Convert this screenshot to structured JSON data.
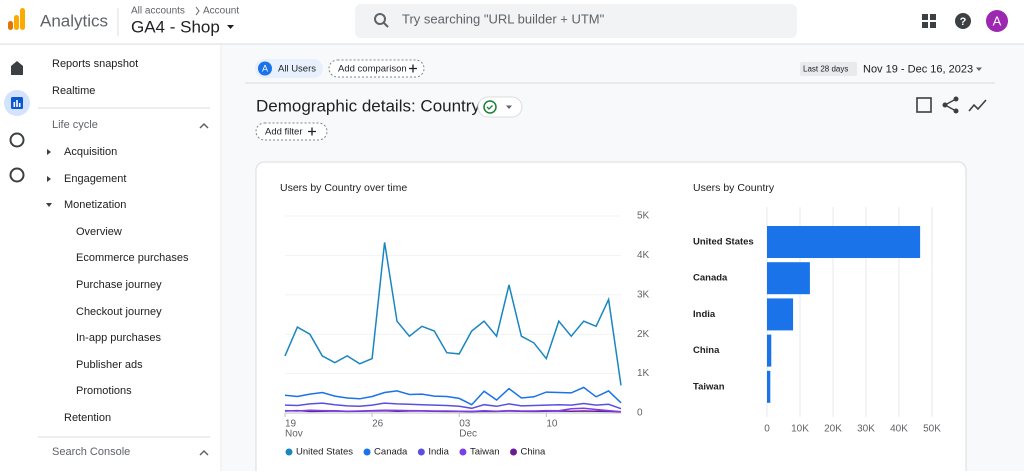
{
  "header": {
    "app": "Analytics",
    "breadcrumb_root": "All accounts",
    "breadcrumb_leaf": "Account",
    "property": "GA4 -  Shop",
    "search_placeholder": "Try searching \"URL builder + UTM\"",
    "avatar": "A"
  },
  "sidebar": {
    "items": [
      "Reports snapshot",
      "Realtime",
      "Life cycle",
      "Acquisition",
      "Engagement",
      "Monetization",
      "Overview",
      "Ecommerce purchases",
      "Purchase journey",
      "Checkout journey",
      "In-app purchases",
      "Publisher ads",
      "Promotions",
      "Retention",
      "Search Console"
    ]
  },
  "toolbar": {
    "segment_badge": "A",
    "segment": "All Users",
    "add_comparison": "Add comparison",
    "date_label": "Last 28 days",
    "date_range": "Nov 19 - Dec 16, 2023"
  },
  "page_title": "Demographic details: Country",
  "add_filter": "Add filter",
  "chart_data": [
    {
      "type": "line",
      "title": "Users by Country over time",
      "categories": [
        "19",
        null,
        null,
        null,
        null,
        null,
        null,
        "26",
        null,
        null,
        null,
        null,
        null,
        null,
        "03",
        null,
        null,
        null,
        null,
        null,
        null,
        "10",
        null,
        null,
        null,
        null,
        null,
        null
      ],
      "category_sublabels": [
        "Nov",
        null,
        null,
        null,
        null,
        null,
        null,
        null,
        null,
        null,
        null,
        null,
        null,
        null,
        "Dec",
        null,
        null,
        null,
        null,
        null,
        null,
        null,
        null,
        null,
        null,
        null,
        null,
        null
      ],
      "ylim": [
        0,
        5000
      ],
      "yticks": [
        0,
        {
          "value": 1000,
          "label": "1K"
        },
        {
          "value": 2000,
          "label": "2K"
        },
        {
          "value": 3000,
          "label": "3K"
        },
        {
          "value": 4000,
          "label": "4K"
        },
        {
          "value": 5000,
          "label": "5K"
        }
      ],
      "grid": true,
      "series": [
        {
          "name": "United States",
          "color": "#1a86c0",
          "values": [
            1450,
            2180,
            2000,
            1450,
            1280,
            1450,
            1250,
            1380,
            4330,
            2330,
            1950,
            2200,
            2080,
            1530,
            1500,
            2080,
            2330,
            1950,
            3250,
            1950,
            1780,
            1380,
            2330,
            1950,
            2330,
            2200,
            2880,
            700
          ]
        },
        {
          "name": "Canada",
          "color": "#1a73e8",
          "values": [
            450,
            420,
            480,
            520,
            430,
            380,
            360,
            420,
            520,
            560,
            470,
            480,
            430,
            420,
            370,
            210,
            550,
            330,
            620,
            380,
            410,
            530,
            520,
            510,
            650,
            410,
            560,
            260
          ]
        },
        {
          "name": "India",
          "color": "#5b4fe0",
          "values": [
            200,
            190,
            230,
            250,
            210,
            180,
            170,
            200,
            250,
            230,
            220,
            210,
            200,
            190,
            170,
            120,
            210,
            170,
            230,
            180,
            190,
            200,
            210,
            200,
            240,
            200,
            220,
            110
          ]
        },
        {
          "name": "Taiwan",
          "color": "#7b3fe4",
          "values": [
            60,
            50,
            70,
            60,
            55,
            45,
            50,
            60,
            70,
            65,
            60,
            55,
            50,
            50,
            45,
            40,
            55,
            45,
            60,
            50,
            50,
            60,
            55,
            110,
            120,
            90,
            60,
            30
          ]
        },
        {
          "name": "China",
          "color": "#6a1b9a",
          "values": [
            50,
            60,
            40,
            45,
            50,
            40,
            45,
            50,
            55,
            45,
            50,
            50,
            45,
            40,
            40,
            35,
            45,
            40,
            50,
            45,
            40,
            45,
            50,
            45,
            50,
            45,
            40,
            30
          ]
        }
      ]
    },
    {
      "type": "bar",
      "orientation": "horizontal",
      "title": "Users by Country",
      "color": "#1a73e8",
      "categories": [
        "United States",
        "Canada",
        "India",
        "China",
        "Taiwan"
      ],
      "values": [
        46400,
        13000,
        7900,
        1300,
        1000
      ],
      "xlim": [
        0,
        50000
      ],
      "xticks": [
        0,
        {
          "value": 10000,
          "label": "10K"
        },
        {
          "value": 20000,
          "label": "20K"
        },
        {
          "value": 30000,
          "label": "30K"
        },
        {
          "value": 40000,
          "label": "40K"
        },
        {
          "value": 50000,
          "label": "50K"
        }
      ],
      "grid": true
    }
  ]
}
